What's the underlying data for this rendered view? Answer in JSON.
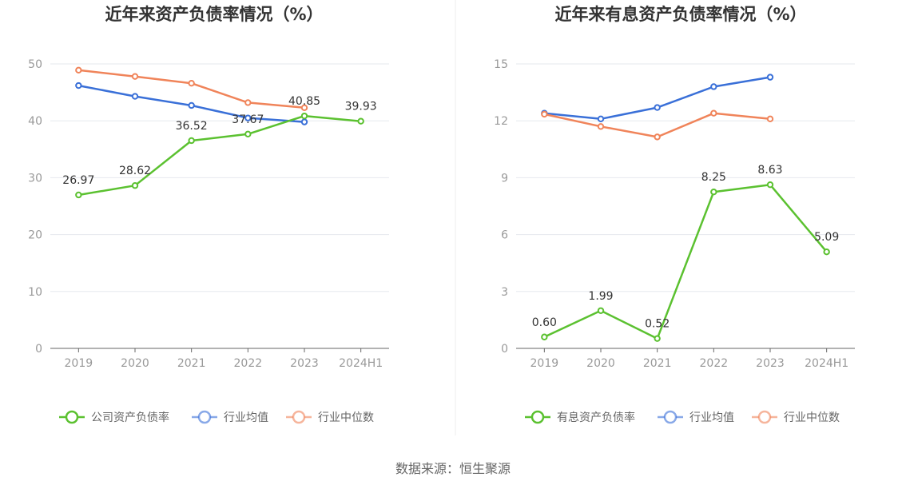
{
  "source": "数据来源：恒生聚源",
  "colors": {
    "green": "#5bc130",
    "blue": "#3a70d8",
    "orange": "#f0845a",
    "grid": "#e6e8ee",
    "axis": "#666666"
  },
  "chart_data": [
    {
      "type": "line",
      "title": "近年来资产负债率情况（%）",
      "categories": [
        "2019",
        "2020",
        "2021",
        "2022",
        "2023",
        "2024H1"
      ],
      "ylim": [
        0,
        50
      ],
      "yticks": [
        0,
        10,
        20,
        30,
        40,
        50
      ],
      "grid": true,
      "legend_position": "bottom",
      "series": [
        {
          "name": "公司资产负债率",
          "color": "#5bc130",
          "labels": true,
          "values": [
            26.97,
            28.62,
            36.52,
            37.67,
            40.85,
            39.93
          ]
        },
        {
          "name": "行业均值",
          "color": "#3a70d8",
          "labels": false,
          "values": [
            46.2,
            44.3,
            42.7,
            40.5,
            39.8,
            null
          ]
        },
        {
          "name": "行业中位数",
          "color": "#f0845a",
          "labels": false,
          "values": [
            48.9,
            47.8,
            46.6,
            43.2,
            42.3,
            null
          ]
        }
      ]
    },
    {
      "type": "line",
      "title": "近年来有息资产负债率情况（%）",
      "categories": [
        "2019",
        "2020",
        "2021",
        "2022",
        "2023",
        "2024H1"
      ],
      "ylim": [
        0,
        15
      ],
      "yticks": [
        0,
        3,
        6,
        9,
        12,
        15
      ],
      "grid": true,
      "legend_position": "bottom",
      "series": [
        {
          "name": "有息资产负债率",
          "color": "#5bc130",
          "labels": true,
          "values": [
            0.6,
            1.99,
            0.52,
            8.25,
            8.63,
            5.09
          ]
        },
        {
          "name": "行业均值",
          "color": "#3a70d8",
          "labels": false,
          "values": [
            12.4,
            12.1,
            12.7,
            13.8,
            14.3,
            null
          ]
        },
        {
          "name": "行业中位数",
          "color": "#f0845a",
          "labels": false,
          "values": [
            12.35,
            11.7,
            11.15,
            12.4,
            12.1,
            null
          ]
        }
      ]
    }
  ]
}
